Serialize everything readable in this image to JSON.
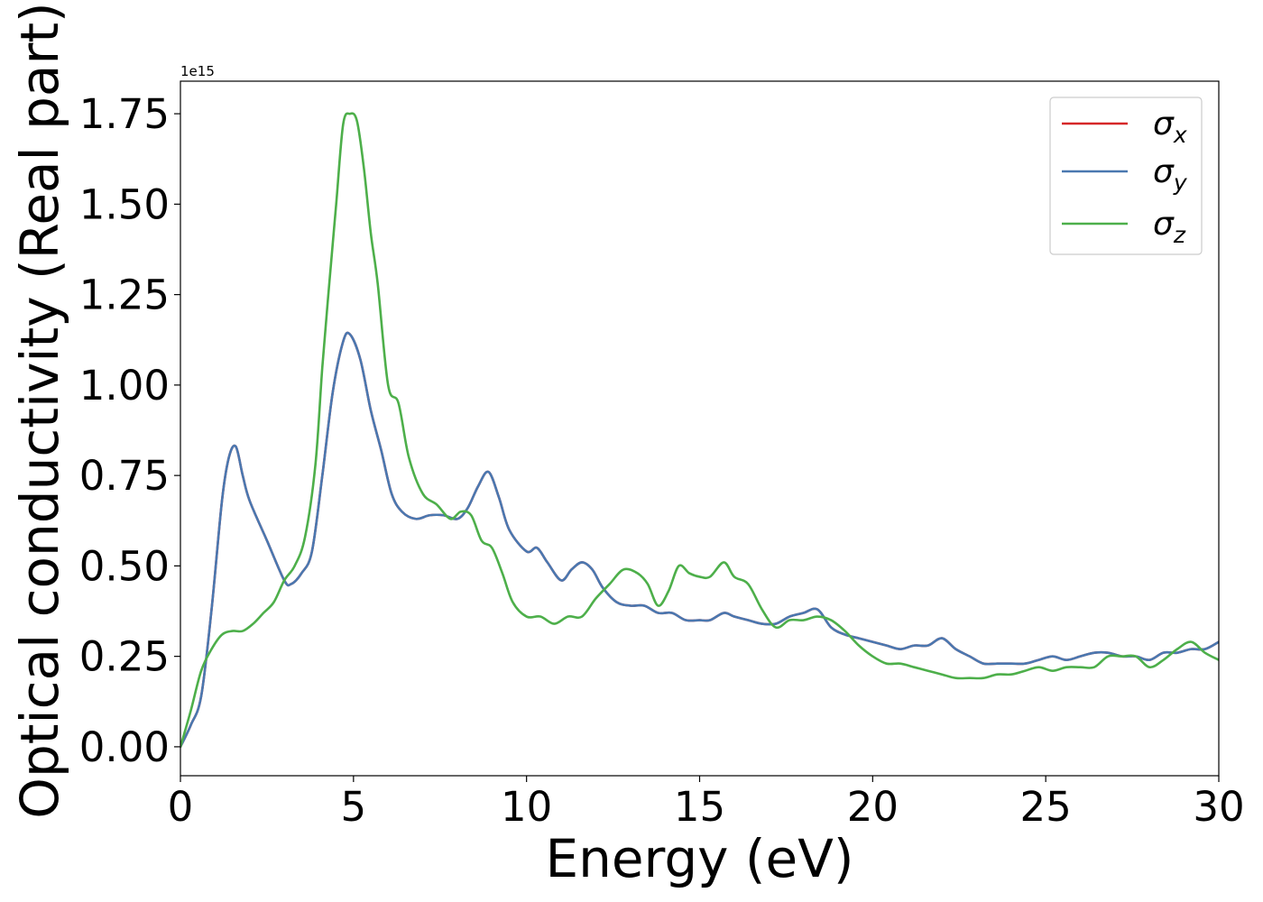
{
  "chart_data": {
    "type": "line",
    "title": "",
    "xlabel": "Energy (eV)",
    "ylabel": "Optical conductivity (Real part)",
    "y_offset_label": "1e15",
    "xlim": [
      0,
      30
    ],
    "ylim": [
      -0.08,
      1.84
    ],
    "x_ticks": [
      0,
      5,
      10,
      15,
      20,
      25,
      30
    ],
    "x_tick_labels": [
      "0",
      "5",
      "10",
      "15",
      "20",
      "25",
      "30"
    ],
    "y_ticks": [
      0.0,
      0.25,
      0.5,
      0.75,
      1.0,
      1.25,
      1.5,
      1.75
    ],
    "y_tick_labels": [
      "0.00",
      "0.25",
      "0.50",
      "0.75",
      "1.00",
      "1.25",
      "1.50",
      "1.75"
    ],
    "grid": false,
    "legend_position": "top-right",
    "series": [
      {
        "name": "σx",
        "name_main": "σ",
        "name_sub": "x",
        "color": "#d62728",
        "x": [
          0,
          0.3,
          0.6,
          0.9,
          1.2,
          1.4,
          1.6,
          1.8,
          2.0,
          2.5,
          3.0,
          3.2,
          3.5,
          3.8,
          4.1,
          4.4,
          4.7,
          4.9,
          5.2,
          5.5,
          5.8,
          6.1,
          6.4,
          6.8,
          7.2,
          7.6,
          8.0,
          8.3,
          8.6,
          8.9,
          9.2,
          9.5,
          10.0,
          10.3,
          10.6,
          11.0,
          11.3,
          11.6,
          11.9,
          12.2,
          12.6,
          13.0,
          13.4,
          13.8,
          14.2,
          14.6,
          15.0,
          15.3,
          15.7,
          16.0,
          16.4,
          16.8,
          17.2,
          17.6,
          18.0,
          18.4,
          18.8,
          19.2,
          19.6,
          20.0,
          20.4,
          20.8,
          21.2,
          21.6,
          22.0,
          22.4,
          22.8,
          23.2,
          23.6,
          24.0,
          24.4,
          24.8,
          25.2,
          25.6,
          26.0,
          26.4,
          26.8,
          27.2,
          27.6,
          28.0,
          28.4,
          28.8,
          29.2,
          29.6,
          30.0
        ],
        "values": [
          0.0,
          0.06,
          0.14,
          0.38,
          0.68,
          0.8,
          0.83,
          0.75,
          0.68,
          0.57,
          0.46,
          0.45,
          0.48,
          0.54,
          0.75,
          0.98,
          1.12,
          1.14,
          1.07,
          0.93,
          0.82,
          0.7,
          0.65,
          0.63,
          0.64,
          0.64,
          0.63,
          0.66,
          0.72,
          0.76,
          0.69,
          0.6,
          0.54,
          0.55,
          0.51,
          0.46,
          0.49,
          0.51,
          0.49,
          0.44,
          0.4,
          0.39,
          0.39,
          0.37,
          0.37,
          0.35,
          0.35,
          0.35,
          0.37,
          0.36,
          0.35,
          0.34,
          0.34,
          0.36,
          0.37,
          0.38,
          0.33,
          0.31,
          0.3,
          0.29,
          0.28,
          0.27,
          0.28,
          0.28,
          0.3,
          0.27,
          0.25,
          0.23,
          0.23,
          0.23,
          0.23,
          0.24,
          0.25,
          0.24,
          0.25,
          0.26,
          0.26,
          0.25,
          0.25,
          0.24,
          0.26,
          0.26,
          0.27,
          0.27,
          0.29
        ]
      },
      {
        "name": "σy",
        "name_main": "σ",
        "name_sub": "y",
        "color": "#4a78b0",
        "x": [
          0,
          0.3,
          0.6,
          0.9,
          1.2,
          1.4,
          1.6,
          1.8,
          2.0,
          2.5,
          3.0,
          3.2,
          3.5,
          3.8,
          4.1,
          4.4,
          4.7,
          4.9,
          5.2,
          5.5,
          5.8,
          6.1,
          6.4,
          6.8,
          7.2,
          7.6,
          8.0,
          8.3,
          8.6,
          8.9,
          9.2,
          9.5,
          10.0,
          10.3,
          10.6,
          11.0,
          11.3,
          11.6,
          11.9,
          12.2,
          12.6,
          13.0,
          13.4,
          13.8,
          14.2,
          14.6,
          15.0,
          15.3,
          15.7,
          16.0,
          16.4,
          16.8,
          17.2,
          17.6,
          18.0,
          18.4,
          18.8,
          19.2,
          19.6,
          20.0,
          20.4,
          20.8,
          21.2,
          21.6,
          22.0,
          22.4,
          22.8,
          23.2,
          23.6,
          24.0,
          24.4,
          24.8,
          25.2,
          25.6,
          26.0,
          26.4,
          26.8,
          27.2,
          27.6,
          28.0,
          28.4,
          28.8,
          29.2,
          29.6,
          30.0
        ],
        "values": [
          0.0,
          0.06,
          0.14,
          0.38,
          0.68,
          0.8,
          0.83,
          0.75,
          0.68,
          0.57,
          0.46,
          0.45,
          0.48,
          0.54,
          0.75,
          0.98,
          1.12,
          1.14,
          1.07,
          0.93,
          0.82,
          0.7,
          0.65,
          0.63,
          0.64,
          0.64,
          0.63,
          0.66,
          0.72,
          0.76,
          0.69,
          0.6,
          0.54,
          0.55,
          0.51,
          0.46,
          0.49,
          0.51,
          0.49,
          0.44,
          0.4,
          0.39,
          0.39,
          0.37,
          0.37,
          0.35,
          0.35,
          0.35,
          0.37,
          0.36,
          0.35,
          0.34,
          0.34,
          0.36,
          0.37,
          0.38,
          0.33,
          0.31,
          0.3,
          0.29,
          0.28,
          0.27,
          0.28,
          0.28,
          0.3,
          0.27,
          0.25,
          0.23,
          0.23,
          0.23,
          0.23,
          0.24,
          0.25,
          0.24,
          0.25,
          0.26,
          0.26,
          0.25,
          0.25,
          0.24,
          0.26,
          0.26,
          0.27,
          0.27,
          0.29
        ]
      },
      {
        "name": "σz",
        "name_main": "σ",
        "name_sub": "z",
        "color": "#4daf4a",
        "x": [
          0,
          0.3,
          0.6,
          0.9,
          1.2,
          1.5,
          1.8,
          2.1,
          2.4,
          2.7,
          3.0,
          3.3,
          3.6,
          3.9,
          4.1,
          4.3,
          4.5,
          4.7,
          4.9,
          5.1,
          5.3,
          5.5,
          5.7,
          6.0,
          6.3,
          6.6,
          7.0,
          7.4,
          7.8,
          8.1,
          8.4,
          8.7,
          9.0,
          9.3,
          9.6,
          10.0,
          10.4,
          10.8,
          11.2,
          11.6,
          12.0,
          12.4,
          12.8,
          13.2,
          13.5,
          13.8,
          14.1,
          14.4,
          14.7,
          15.0,
          15.3,
          15.7,
          16.0,
          16.4,
          16.8,
          17.2,
          17.6,
          18.0,
          18.4,
          18.8,
          19.2,
          19.6,
          20.0,
          20.4,
          20.8,
          21.2,
          21.6,
          22.0,
          22.4,
          22.8,
          23.2,
          23.6,
          24.0,
          24.4,
          24.8,
          25.2,
          25.6,
          26.0,
          26.4,
          26.8,
          27.2,
          27.6,
          28.0,
          28.4,
          28.8,
          29.2,
          29.6,
          30.0
        ],
        "values": [
          0.0,
          0.1,
          0.21,
          0.27,
          0.31,
          0.32,
          0.32,
          0.34,
          0.37,
          0.4,
          0.46,
          0.5,
          0.58,
          0.78,
          1.05,
          1.28,
          1.5,
          1.72,
          1.75,
          1.73,
          1.6,
          1.42,
          1.28,
          1.0,
          0.95,
          0.8,
          0.7,
          0.67,
          0.63,
          0.65,
          0.64,
          0.57,
          0.55,
          0.48,
          0.4,
          0.36,
          0.36,
          0.34,
          0.36,
          0.36,
          0.41,
          0.45,
          0.49,
          0.48,
          0.45,
          0.39,
          0.43,
          0.5,
          0.48,
          0.47,
          0.47,
          0.51,
          0.47,
          0.45,
          0.38,
          0.33,
          0.35,
          0.35,
          0.36,
          0.35,
          0.32,
          0.28,
          0.25,
          0.23,
          0.23,
          0.22,
          0.21,
          0.2,
          0.19,
          0.19,
          0.19,
          0.2,
          0.2,
          0.21,
          0.22,
          0.21,
          0.22,
          0.22,
          0.22,
          0.25,
          0.25,
          0.25,
          0.22,
          0.24,
          0.27,
          0.29,
          0.26,
          0.24
        ]
      }
    ]
  }
}
